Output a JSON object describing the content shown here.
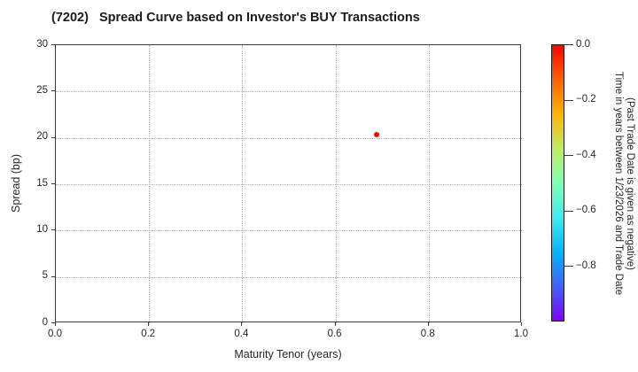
{
  "title": "(7202)   Spread Curve based on Investor's BUY Transactions",
  "colors": {
    "point_red": "#ff0000",
    "spine": "#3a3a3a",
    "grid": "#b0b0b0",
    "text": "#262626"
  },
  "colorbar": {
    "label_line1": "Time in years between 1/23/2026 and Trade Date",
    "label_line2": "(Past Trade Date is given as negative)"
  },
  "chart_data": {
    "type": "scatter",
    "title": "(7202)   Spread Curve based on Investor's BUY Transactions",
    "xlabel": "Maturity Tenor (years)",
    "ylabel": "Spread (bp)",
    "xlim": [
      0.0,
      1.0
    ],
    "ylim": [
      0,
      30
    ],
    "grid": true,
    "grid_style": "dotted",
    "xticks": [
      {
        "v": 0.0,
        "label": "0.0"
      },
      {
        "v": 0.2,
        "label": "0.2"
      },
      {
        "v": 0.4,
        "label": "0.4"
      },
      {
        "v": 0.6,
        "label": "0.6"
      },
      {
        "v": 0.8,
        "label": "0.8"
      },
      {
        "v": 1.0,
        "label": "1.0"
      }
    ],
    "yticks": [
      {
        "v": 0,
        "label": "0"
      },
      {
        "v": 5,
        "label": "5"
      },
      {
        "v": 10,
        "label": "10"
      },
      {
        "v": 15,
        "label": "15"
      },
      {
        "v": 20,
        "label": "20"
      },
      {
        "v": 25,
        "label": "25"
      },
      {
        "v": 30,
        "label": "30"
      }
    ],
    "points": [
      {
        "x": 0.69,
        "y": 20.3,
        "color_value": 0.0,
        "color": "#ff0000",
        "size": 6
      }
    ],
    "colorbar": {
      "colormap": "rainbow",
      "lim": [
        -1.0,
        0.0
      ],
      "ticks": [
        {
          "v": 0.0,
          "label": "0.0"
        },
        {
          "v": -0.2,
          "label": "−0.2"
        },
        {
          "v": -0.4,
          "label": "−0.4"
        },
        {
          "v": -0.6,
          "label": "−0.6"
        },
        {
          "v": -0.8,
          "label": "−0.8"
        }
      ],
      "label_line1": "Time in years between 1/23/2026 and Trade Date",
      "label_line2": "(Past Trade Date is given as negative)",
      "gradient_top_to_bottom": [
        "#ff0000",
        "#ff6200",
        "#ffb400",
        "#bfec62",
        "#80ffb4",
        "#40ecec",
        "#00b4ff",
        "#4062ff",
        "#8000ff"
      ]
    }
  }
}
